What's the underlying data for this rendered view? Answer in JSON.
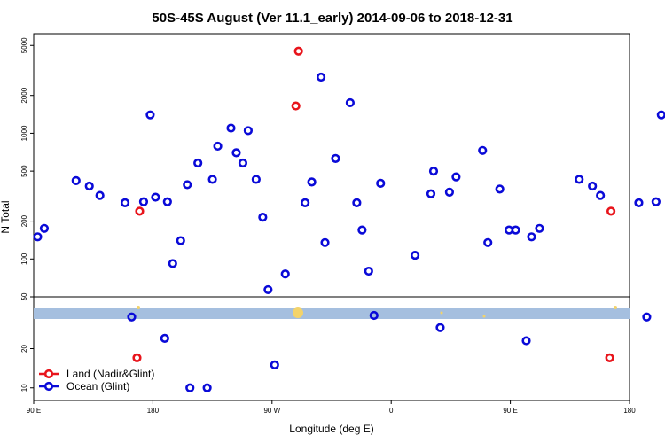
{
  "chart_data": {
    "type": "scatter",
    "title": "50S-45S August (Ver 11.1_early)   2014-09-06 to 2018-12-31",
    "xlabel": "Longitude (deg E)",
    "ylabel": "N Total",
    "x_ticks": [
      {
        "value": 90,
        "label": "90 E"
      },
      {
        "value": 180,
        "label": "180"
      },
      {
        "value": 270,
        "label": "90 W"
      },
      {
        "value": 360,
        "label": "0"
      },
      {
        "value": 450,
        "label": "90 E"
      },
      {
        "value": 540,
        "label": "180"
      }
    ],
    "y_ticks": [
      {
        "value": 10,
        "label": "10"
      },
      {
        "value": 20,
        "label": "20"
      },
      {
        "value": 50,
        "label": "50"
      },
      {
        "value": 100,
        "label": "100"
      },
      {
        "value": 200,
        "label": "200"
      },
      {
        "value": 500,
        "label": "500"
      },
      {
        "value": 1000,
        "label": "1000"
      },
      {
        "value": 2000,
        "label": "2000"
      },
      {
        "value": 5000,
        "label": "5000"
      }
    ],
    "xlim": [
      90,
      540
    ],
    "ylim_upper": [
      50,
      6200
    ],
    "ylim_lower": [
      8,
      50
    ],
    "y_scale": "log",
    "band": {
      "color": "#a5bfdf",
      "markers_color": "#f3d36a"
    },
    "legend": {
      "position": "bottom-left"
    },
    "series": [
      {
        "name": "Land (Nadir&Glint)",
        "color": "#e8141b",
        "points": [
          [
            170,
            240
          ],
          [
            168,
            17
          ],
          [
            290,
            4500
          ],
          [
            288,
            1650
          ],
          [
            526,
            240
          ],
          [
            525,
            17
          ]
        ]
      },
      {
        "name": "Ocean (Glint)",
        "color": "#0a0ad8",
        "points": [
          [
            93,
            150
          ],
          [
            98,
            175
          ],
          [
            122,
            420
          ],
          [
            132,
            380
          ],
          [
            140,
            320
          ],
          [
            159,
            280
          ],
          [
            164,
            35
          ],
          [
            173,
            285
          ],
          [
            178,
            1400
          ],
          [
            182,
            310
          ],
          [
            189,
            24
          ],
          [
            191,
            285
          ],
          [
            195,
            92
          ],
          [
            201,
            140
          ],
          [
            206,
            390
          ],
          [
            208,
            10
          ],
          [
            214,
            580
          ],
          [
            221,
            10
          ],
          [
            225,
            430
          ],
          [
            229,
            790
          ],
          [
            239,
            1100
          ],
          [
            243,
            700
          ],
          [
            248,
            580
          ],
          [
            252,
            1050
          ],
          [
            258,
            430
          ],
          [
            263,
            215
          ],
          [
            267,
            57
          ],
          [
            272,
            15
          ],
          [
            280,
            76
          ],
          [
            295,
            280
          ],
          [
            300,
            410
          ],
          [
            307,
            2800
          ],
          [
            310,
            135
          ],
          [
            318,
            630
          ],
          [
            329,
            1750
          ],
          [
            334,
            280
          ],
          [
            338,
            170
          ],
          [
            343,
            80
          ],
          [
            347,
            36
          ],
          [
            352,
            400
          ],
          [
            378,
            107
          ],
          [
            390,
            330
          ],
          [
            392,
            500
          ],
          [
            397,
            29
          ],
          [
            404,
            340
          ],
          [
            409,
            450
          ],
          [
            429,
            730
          ],
          [
            433,
            135
          ],
          [
            442,
            360
          ],
          [
            449,
            170
          ],
          [
            454,
            170
          ],
          [
            462,
            23
          ],
          [
            466,
            150
          ],
          [
            472,
            175
          ],
          [
            502,
            430
          ],
          [
            512,
            380
          ],
          [
            518,
            320
          ],
          [
            547,
            280
          ],
          [
            553,
            35
          ],
          [
            560,
            285
          ],
          [
            564,
            1400
          ]
        ]
      }
    ]
  }
}
